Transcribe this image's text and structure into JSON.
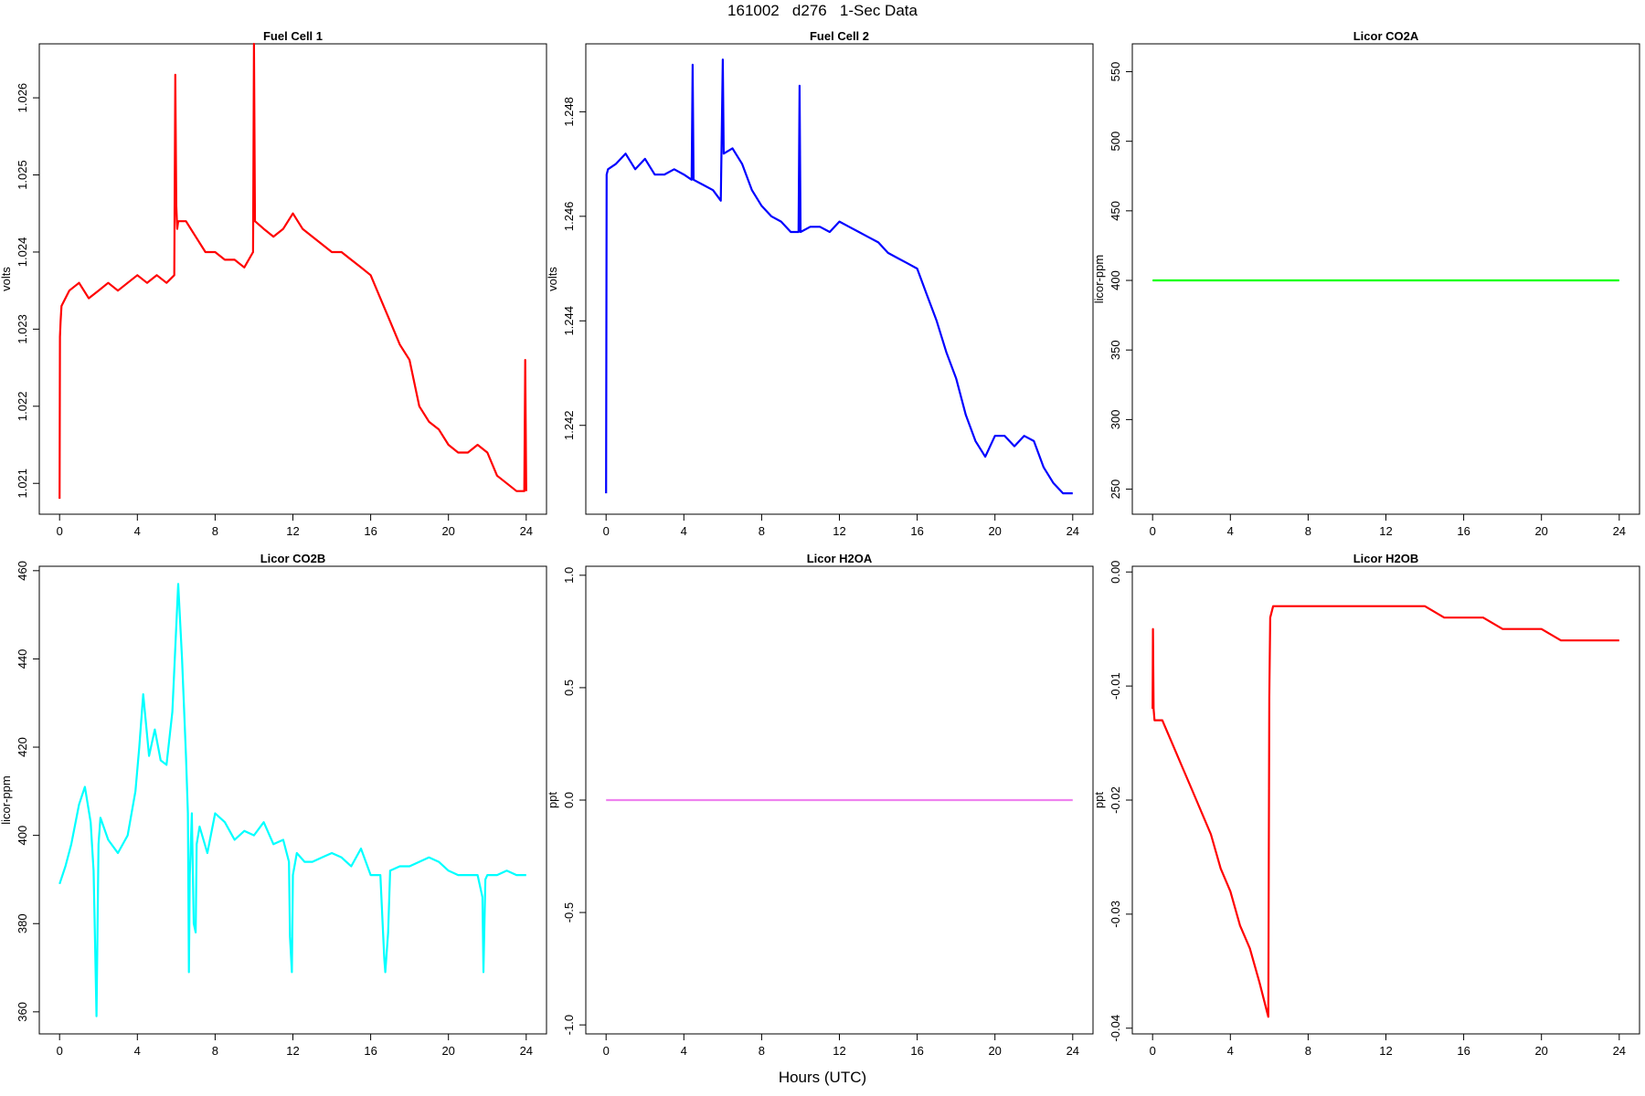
{
  "figure": {
    "title": "161002   d276   1-Sec Data",
    "xlabel": "Hours (UTC)"
  },
  "colors": {
    "fuel_cell_1": "#ff0000",
    "fuel_cell_2": "#0000ff",
    "licor_co2a": "#00ff00",
    "licor_co2b": "#00ffff",
    "licor_h2oa": "#ee82ee",
    "licor_h2ob": "#ff0000"
  },
  "chart_data": [
    {
      "type": "line",
      "title": "Fuel Cell 1",
      "xlabel": "",
      "ylabel": "volts",
      "xlim": [
        0,
        24
      ],
      "ylim": [
        1.0206,
        1.0267
      ],
      "xticks": [
        "0",
        "4",
        "8",
        "12",
        "16",
        "20",
        "24"
      ],
      "yticks": [
        "1.021",
        "1.022",
        "1.023",
        "1.024",
        "1.025",
        "1.026"
      ],
      "color": "#ff0000",
      "series": [
        {
          "x": [
            0,
            0.02,
            0.05,
            0.1,
            0.5,
            1,
            1.5,
            2,
            2.5,
            3,
            3.5,
            4,
            4.5,
            5,
            5.5,
            5.9,
            5.95,
            6.0,
            6.05,
            6.1,
            6.5,
            7,
            7.5,
            8,
            8.5,
            9,
            9.5,
            9.95,
            10.0,
            10.05,
            10.5,
            11,
            11.5,
            12,
            12.5,
            13,
            13.5,
            14,
            14.5,
            15,
            15.5,
            16,
            16.5,
            17,
            17.5,
            18,
            18.5,
            19,
            19.5,
            20,
            20.5,
            21,
            21.5,
            22,
            22.5,
            23,
            23.5,
            23.9,
            23.95,
            24
          ],
          "y": [
            1.0208,
            1.0229,
            1.0231,
            1.0233,
            1.0235,
            1.0236,
            1.0234,
            1.0235,
            1.0236,
            1.0235,
            1.0236,
            1.0237,
            1.0236,
            1.0237,
            1.0236,
            1.0237,
            1.0263,
            1.0246,
            1.0243,
            1.0244,
            1.0244,
            1.0242,
            1.024,
            1.024,
            1.0239,
            1.0239,
            1.0238,
            1.024,
            1.0267,
            1.0244,
            1.0243,
            1.0242,
            1.0243,
            1.0245,
            1.0243,
            1.0242,
            1.0241,
            1.024,
            1.024,
            1.0239,
            1.0238,
            1.0237,
            1.0234,
            1.0231,
            1.0228,
            1.0226,
            1.022,
            1.0218,
            1.0217,
            1.0215,
            1.0214,
            1.0214,
            1.0215,
            1.0214,
            1.0211,
            1.021,
            1.0209,
            1.0209,
            1.0226,
            1.0209
          ]
        }
      ]
    },
    {
      "type": "line",
      "title": "Fuel Cell 2",
      "xlabel": "",
      "ylabel": "volts",
      "xlim": [
        0,
        24
      ],
      "ylim": [
        1.2403,
        1.2493
      ],
      "xticks": [
        "0",
        "4",
        "8",
        "12",
        "16",
        "20",
        "24"
      ],
      "yticks": [
        "1.242",
        "1.244",
        "1.246",
        "1.248"
      ],
      "color": "#0000ff",
      "series": [
        {
          "x": [
            0,
            0.03,
            0.1,
            0.5,
            1,
            1.5,
            2,
            2.5,
            3,
            3.5,
            4,
            4.4,
            4.45,
            4.5,
            5,
            5.5,
            5.9,
            6.0,
            6.05,
            6.5,
            7,
            7.5,
            8,
            8.5,
            9,
            9.5,
            9.9,
            9.95,
            10.0,
            10.5,
            11,
            11.5,
            12,
            12.5,
            13,
            13.5,
            14,
            14.5,
            15,
            15.5,
            16,
            16.5,
            17,
            17.5,
            18,
            18.5,
            19,
            19.5,
            20,
            20.5,
            21,
            21.5,
            22,
            22.5,
            23,
            23.5,
            24
          ],
          "y": [
            1.2407,
            1.2468,
            1.2469,
            1.247,
            1.2472,
            1.2469,
            1.2471,
            1.2468,
            1.2468,
            1.2469,
            1.2468,
            1.2467,
            1.2489,
            1.2467,
            1.2466,
            1.2465,
            1.2463,
            1.249,
            1.2472,
            1.2473,
            1.247,
            1.2465,
            1.2462,
            1.246,
            1.2459,
            1.2457,
            1.2457,
            1.2485,
            1.2457,
            1.2458,
            1.2458,
            1.2457,
            1.2459,
            1.2458,
            1.2457,
            1.2456,
            1.2455,
            1.2453,
            1.2452,
            1.2451,
            1.245,
            1.2445,
            1.244,
            1.2434,
            1.2429,
            1.2422,
            1.2417,
            1.2414,
            1.2418,
            1.2418,
            1.2416,
            1.2418,
            1.2417,
            1.2412,
            1.2409,
            1.2407,
            1.2407
          ]
        }
      ]
    },
    {
      "type": "line",
      "title": "Licor CO2A",
      "xlabel": "",
      "ylabel": "licor-ppm",
      "xlim": [
        0,
        24
      ],
      "ylim": [
        232,
        570
      ],
      "xticks": [
        "0",
        "4",
        "8",
        "12",
        "16",
        "20",
        "24"
      ],
      "yticks": [
        "250",
        "300",
        "350",
        "400",
        "450",
        "500",
        "550"
      ],
      "color": "#00ff00",
      "series": [
        {
          "x": [
            0,
            24
          ],
          "y": [
            400,
            400
          ]
        }
      ]
    },
    {
      "type": "line",
      "title": "Licor CO2B",
      "xlabel": "",
      "ylabel": "licor-ppm",
      "xlim": [
        0,
        24
      ],
      "ylim": [
        355,
        461
      ],
      "xticks": [
        "0",
        "4",
        "8",
        "12",
        "16",
        "20",
        "24"
      ],
      "yticks": [
        "360",
        "380",
        "400",
        "420",
        "440",
        "460"
      ],
      "color": "#00ffff",
      "series": [
        {
          "x": [
            0,
            0.3,
            0.6,
            1.0,
            1.3,
            1.6,
            1.75,
            1.8,
            1.9,
            2.0,
            2.1,
            2.5,
            3.0,
            3.5,
            3.9,
            4.1,
            4.3,
            4.6,
            4.9,
            5.2,
            5.5,
            5.8,
            6.1,
            6.3,
            6.5,
            6.6,
            6.65,
            6.7,
            6.8,
            6.9,
            7.0,
            7.05,
            7.2,
            7.6,
            8.0,
            8.5,
            9.0,
            9.5,
            10.0,
            10.5,
            11.0,
            11.5,
            11.8,
            11.85,
            11.95,
            12.0,
            12.2,
            12.6,
            13.0,
            13.5,
            14.0,
            14.5,
            15.0,
            15.5,
            16.0,
            16.5,
            16.7,
            16.75,
            16.9,
            17.0,
            17.5,
            18.0,
            18.5,
            19.0,
            19.5,
            20.0,
            20.5,
            21.0,
            21.5,
            21.75,
            21.8,
            21.9,
            22.0,
            22.5,
            23.0,
            23.5,
            24
          ],
          "y": [
            389,
            393,
            398,
            407,
            411,
            403,
            392,
            381,
            359,
            398,
            404,
            399,
            396,
            400,
            410,
            420,
            432,
            418,
            424,
            417,
            416,
            428,
            457,
            440,
            418,
            405,
            369,
            391,
            405,
            380,
            378,
            398,
            402,
            396,
            405,
            403,
            399,
            401,
            400,
            403,
            398,
            399,
            394,
            377,
            369,
            391,
            396,
            394,
            394,
            395,
            396,
            395,
            393,
            397,
            391,
            391,
            372,
            369,
            378,
            392,
            393,
            393,
            394,
            395,
            394,
            392,
            391,
            391,
            391,
            386,
            369,
            390,
            391,
            391,
            392,
            391,
            391
          ]
        }
      ]
    },
    {
      "type": "line",
      "title": "Licor H2OA",
      "xlabel": "",
      "ylabel": "ppt",
      "xlim": [
        0,
        24
      ],
      "ylim": [
        -1.04,
        1.04
      ],
      "xticks": [
        "0",
        "4",
        "8",
        "12",
        "16",
        "20",
        "24"
      ],
      "yticks": [
        "-1.0",
        "-0.5",
        "0.0",
        "0.5",
        "1.0"
      ],
      "color": "#ee82ee",
      "series": [
        {
          "x": [
            0,
            24
          ],
          "y": [
            0,
            0
          ]
        }
      ]
    },
    {
      "type": "line",
      "title": "Licor H2OB",
      "xlabel": "",
      "ylabel": "ppt",
      "xlim": [
        0,
        24
      ],
      "ylim": [
        -0.0405,
        0.0005
      ],
      "xticks": [
        "0",
        "4",
        "8",
        "12",
        "16",
        "20",
        "24"
      ],
      "yticks": [
        "-0.04",
        "-0.03",
        "-0.02",
        "-0.01",
        "0.00"
      ],
      "color": "#ff0000",
      "series": [
        {
          "x": [
            0,
            0.02,
            0.05,
            0.1,
            0.5,
            1,
            1.5,
            2,
            2.5,
            3,
            3.5,
            4,
            4.5,
            5,
            5.5,
            5.95,
            6.0,
            6.05,
            6.2,
            6.5,
            7,
            8,
            9,
            10,
            11,
            12,
            13,
            14,
            15,
            16,
            17,
            18,
            19,
            20,
            21,
            22,
            23,
            24
          ],
          "y": [
            -0.012,
            -0.005,
            -0.012,
            -0.013,
            -0.013,
            -0.015,
            -0.017,
            -0.019,
            -0.021,
            -0.023,
            -0.026,
            -0.028,
            -0.031,
            -0.033,
            -0.036,
            -0.039,
            -0.011,
            -0.004,
            -0.003,
            -0.003,
            -0.003,
            -0.003,
            -0.003,
            -0.003,
            -0.003,
            -0.003,
            -0.003,
            -0.003,
            -0.004,
            -0.004,
            -0.004,
            -0.005,
            -0.005,
            -0.005,
            -0.006,
            -0.006,
            -0.006,
            -0.006
          ]
        }
      ]
    }
  ]
}
